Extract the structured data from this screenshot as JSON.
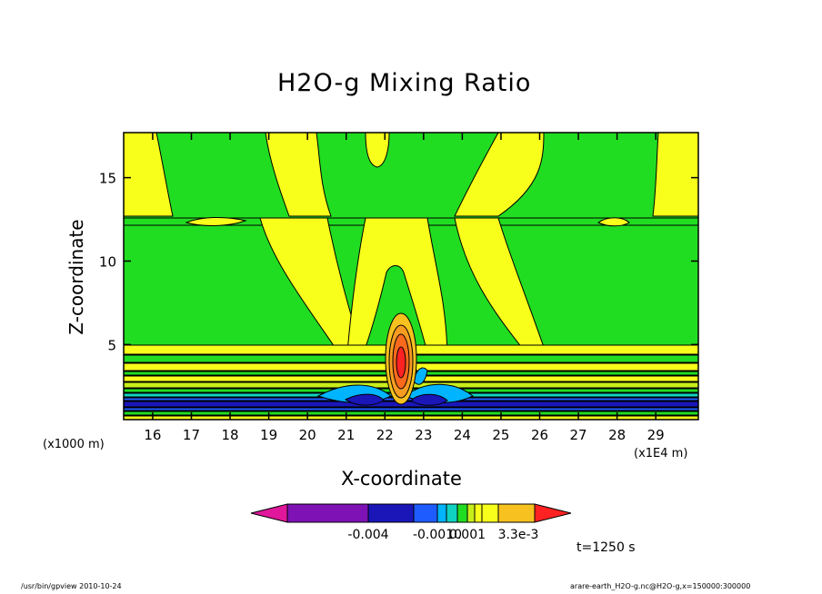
{
  "chart_data": {
    "type": "heatmap",
    "title": "H2O-g Mixing Ratio",
    "xlabel": "X-coordinate",
    "ylabel": "Z-coordinate",
    "x_unit": "(x1E4 m)",
    "y_unit": "(x1000 m)",
    "x_ticks": [
      16,
      17,
      18,
      19,
      20,
      21,
      22,
      23,
      24,
      25,
      26,
      27,
      28,
      29
    ],
    "y_ticks": [
      5,
      10,
      15
    ],
    "xlim": [
      15.25,
      30.1
    ],
    "ylim": [
      0.5,
      17.7
    ],
    "colorbar": {
      "colors": [
        "#e0179a",
        "#7e12b4",
        "#1a16b8",
        "#1f5cff",
        "#00b4ff",
        "#0fd3c0",
        "#21dd21",
        "#c8ee1a",
        "#f7ff1b",
        "#f7c21f",
        "#f79b21",
        "#fb6a1c",
        "#ff2222"
      ],
      "labels": [
        "-0.004",
        "-0.0010",
        "0.001",
        "3.3e-3"
      ]
    },
    "time_label": "t=1250 s"
  },
  "footer": {
    "left": "/usr/bin/gpview   2010-10-24",
    "right": "arare-earth_H2O-g.nc@H2O-g,x=150000:300000"
  }
}
